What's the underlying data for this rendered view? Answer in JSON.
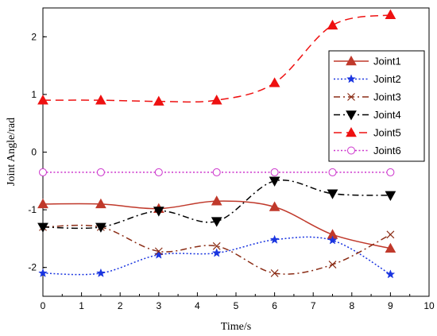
{
  "chart_data": {
    "type": "line",
    "title": "",
    "xlabel": "Time/s",
    "ylabel": "Joint Angle/rad",
    "xlim": [
      0,
      10
    ],
    "ylim": [
      -2.5,
      2.5
    ],
    "xticks": [
      0,
      1,
      2,
      3,
      4,
      5,
      6,
      7,
      8,
      9,
      10
    ],
    "yticks": [
      -2,
      -1,
      0,
      1,
      2
    ],
    "grid": false,
    "legend_position": "top-right",
    "series": [
      {
        "name": "Joint1",
        "color": "#c0392b",
        "line_style": "solid",
        "marker": "triangle-up",
        "x": [
          0,
          1.5,
          3,
          4.5,
          6,
          7.5,
          9
        ],
        "y": [
          -0.9,
          -0.9,
          -0.98,
          -0.85,
          -0.95,
          -1.43,
          -1.67
        ]
      },
      {
        "name": "Joint2",
        "color": "#1a35e0",
        "line_style": "dotted",
        "marker": "star",
        "x": [
          0,
          1.5,
          3,
          4.5,
          6,
          7.5,
          9
        ],
        "y": [
          -2.1,
          -2.1,
          -1.78,
          -1.75,
          -1.52,
          -1.53,
          -2.12
        ]
      },
      {
        "name": "Joint3",
        "color": "#8b2d16",
        "line_style": "dash-dot",
        "marker": "x",
        "x": [
          0,
          1.5,
          3,
          4.5,
          6,
          7.5,
          9
        ],
        "y": [
          -1.3,
          -1.3,
          -1.72,
          -1.63,
          -2.1,
          -1.95,
          -1.43
        ]
      },
      {
        "name": "Joint4",
        "color": "#000000",
        "line_style": "dash-dot",
        "marker": "triangle-down",
        "x": [
          0,
          1.5,
          3,
          4.5,
          6,
          7.5,
          9
        ],
        "y": [
          -1.3,
          -1.3,
          -1.02,
          -1.2,
          -0.5,
          -0.72,
          -0.75
        ]
      },
      {
        "name": "Joint5",
        "color": "#ee1111",
        "line_style": "dashed",
        "marker": "triangle-up",
        "x": [
          0,
          1.5,
          3,
          4.5,
          6,
          7.5,
          9
        ],
        "y": [
          0.9,
          0.9,
          0.88,
          0.9,
          1.2,
          2.2,
          2.38
        ]
      },
      {
        "name": "Joint6",
        "color": "#cc33cc",
        "line_style": "dotted",
        "marker": "circle-open",
        "x": [
          0,
          1.5,
          3,
          4.5,
          6,
          7.5,
          9
        ],
        "y": [
          -0.35,
          -0.35,
          -0.35,
          -0.35,
          -0.35,
          -0.35,
          -0.35
        ]
      }
    ]
  }
}
